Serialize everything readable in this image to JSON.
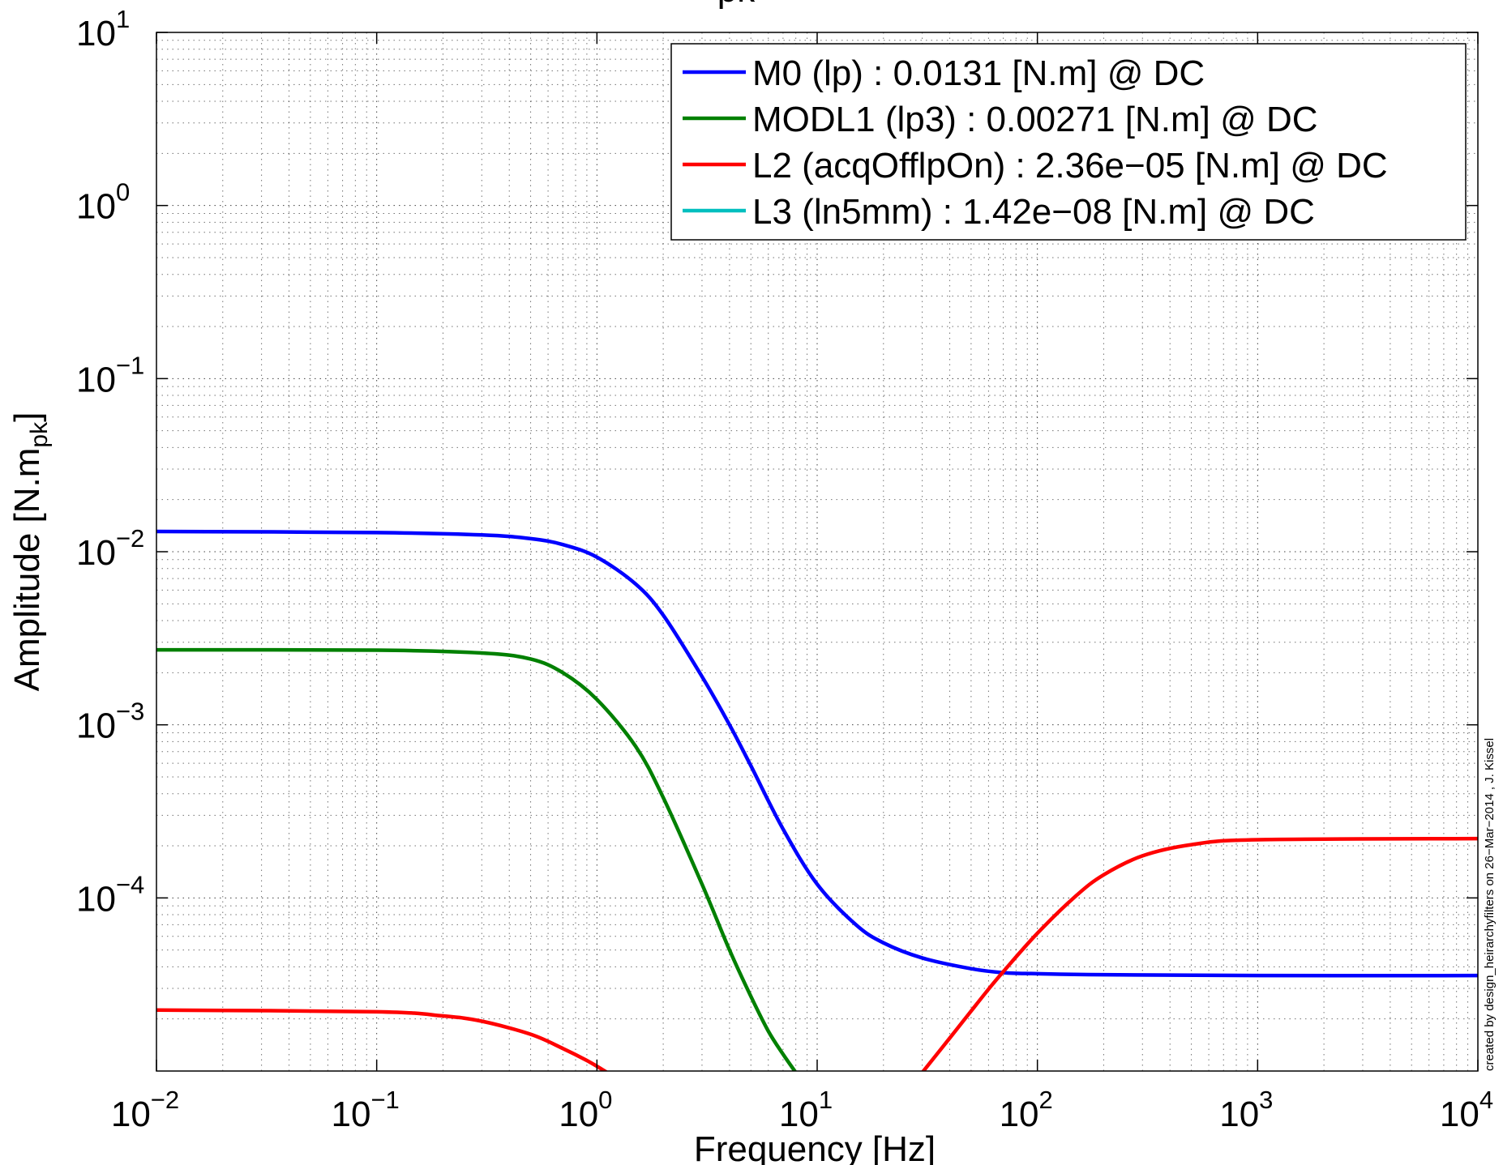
{
  "chart_data": {
    "type": "line",
    "title_fragment": "pk",
    "xlabel": "Frequency [Hz]",
    "ylabel": {
      "main": "Amplitude [N.m",
      "sub": "pk",
      "close": "]"
    },
    "x_scale": "log",
    "y_scale": "log",
    "xlim": [
      0.01,
      10000
    ],
    "ylim": [
      1e-05,
      10
    ],
    "x_ticks": [
      {
        "value": 0.01,
        "base": "10",
        "exp": "−2"
      },
      {
        "value": 0.1,
        "base": "10",
        "exp": "−1"
      },
      {
        "value": 1,
        "base": "10",
        "exp": "0"
      },
      {
        "value": 10,
        "base": "10",
        "exp": "1"
      },
      {
        "value": 100,
        "base": "10",
        "exp": "2"
      },
      {
        "value": 1000,
        "base": "10",
        "exp": "3"
      },
      {
        "value": 10000,
        "base": "10",
        "exp": "4"
      }
    ],
    "y_ticks": [
      {
        "value": 0.0001,
        "base": "10",
        "exp": "−4"
      },
      {
        "value": 0.001,
        "base": "10",
        "exp": "−3"
      },
      {
        "value": 0.01,
        "base": "10",
        "exp": "−2"
      },
      {
        "value": 0.1,
        "base": "10",
        "exp": "−1"
      },
      {
        "value": 1,
        "base": "10",
        "exp": "0"
      },
      {
        "value": 10,
        "base": "10",
        "exp": "1"
      }
    ],
    "grid": true,
    "legend_position": "top-right",
    "series": [
      {
        "name": "M0 (lp) : 0.0131 [N.m] @ DC",
        "color": "#0000ff",
        "x": [
          0.01,
          0.1,
          0.3,
          0.5,
          0.7,
          1,
          1.5,
          2,
          3,
          4,
          5,
          7,
          10,
          15,
          20,
          30,
          50,
          70,
          100,
          200,
          1000,
          10000
        ],
        "y": [
          0.0131,
          0.0129,
          0.0125,
          0.0119,
          0.011,
          0.0093,
          0.0065,
          0.0043,
          0.0019,
          0.001,
          0.00058,
          0.00025,
          0.00012,
          7e-05,
          5.5e-05,
          4.5e-05,
          3.9e-05,
          3.7e-05,
          3.65e-05,
          3.6e-05,
          3.56e-05,
          3.56e-05
        ]
      },
      {
        "name": "MODL1 (lp3) : 0.00271 [N.m] @ DC",
        "color": "#008000",
        "x": [
          0.01,
          0.1,
          0.3,
          0.5,
          0.7,
          1,
          1.5,
          2,
          3,
          4,
          5,
          6,
          7,
          8
        ],
        "y": [
          0.00271,
          0.0027,
          0.0026,
          0.0024,
          0.002,
          0.0014,
          0.00075,
          0.00038,
          0.00012,
          5e-05,
          2.7e-05,
          1.7e-05,
          1.25e-05,
          9.8e-06
        ]
      },
      {
        "name": "L2 (acqOfflpOn) : 2.36e−05 [N.m] @ DC",
        "color": "#ff0000",
        "segments": [
          {
            "x": [
              0.01,
              0.1,
              0.2,
              0.3,
              0.5,
              0.7,
              0.9,
              1.1
            ],
            "y": [
              2.25e-05,
              2.2e-05,
              2.08e-05,
              1.94e-05,
              1.63e-05,
              1.35e-05,
              1.15e-05,
              9.9e-06
            ]
          },
          {
            "x": [
              30,
              40,
              50,
              60,
              70,
              100,
              150,
              200,
              300,
              500,
              1000,
              10000
            ],
            "y": [
              9.8e-06,
              1.55e-05,
              2.22e-05,
              2.97e-05,
              3.75e-05,
              6.25e-05,
              0.000103,
              0.000136,
              0.000175,
              0.000203,
              0.000217,
              0.00022
            ]
          }
        ]
      },
      {
        "name": "L3 (ln5mm) : 1.42e−08 [N.m] @ DC",
        "color": "#00bfbf",
        "x": [],
        "y": []
      }
    ],
    "annotation": "created by design_heirarchyfilters on 26−Mar−2014 , J. Kissel"
  }
}
